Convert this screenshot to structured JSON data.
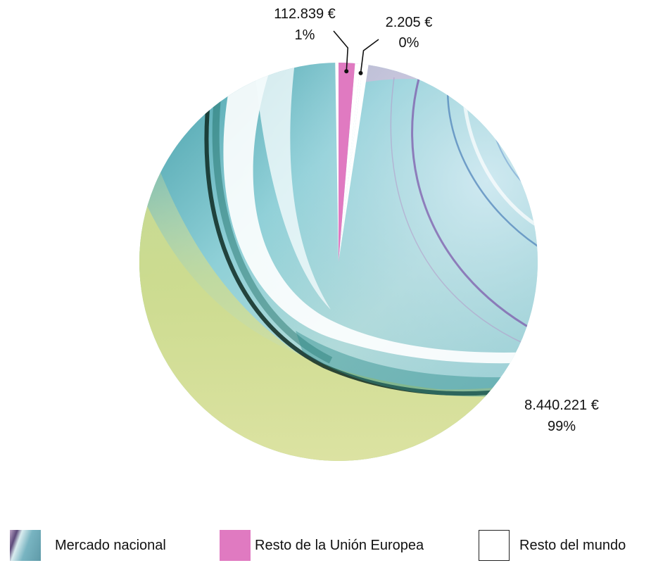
{
  "chart_data": {
    "type": "pie",
    "slices": [
      {
        "name": "Mercado nacional",
        "value": 8440221,
        "value_label": "8.440.221 €",
        "percent_label": "99%",
        "fill": "gradient",
        "color": "#8cc7cf"
      },
      {
        "name": "Resto de la Unión Europea",
        "value": 112839,
        "value_label": "112.839 €",
        "percent_label": "1%",
        "color": "#e07ac1"
      },
      {
        "name": "Resto del mundo",
        "value": 2205,
        "value_label": "2.205 €",
        "percent_label": "0%",
        "color": "#ffffff"
      }
    ],
    "legend": {
      "position": "bottom",
      "items": [
        "Mercado nacional",
        "Resto de la Unión Europea",
        "Resto del mundo"
      ]
    }
  }
}
